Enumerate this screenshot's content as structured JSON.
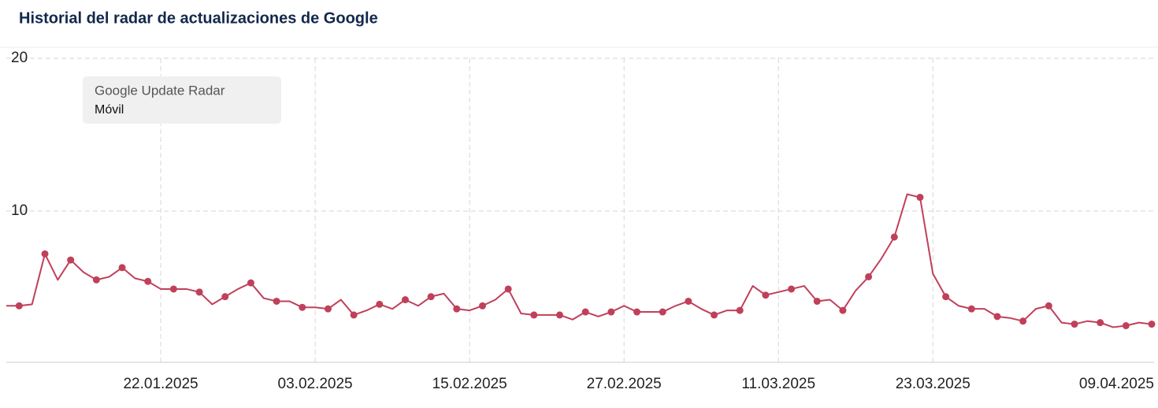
{
  "chart_data": {
    "type": "line",
    "title": "Historial del radar de actualizaciones de Google",
    "legend_title": "Google Update Radar",
    "x": [
      "10.01.2025",
      "11.01.2025",
      "12.01.2025",
      "13.01.2025",
      "14.01.2025",
      "15.01.2025",
      "16.01.2025",
      "17.01.2025",
      "18.01.2025",
      "19.01.2025",
      "20.01.2025",
      "21.01.2025",
      "22.01.2025",
      "23.01.2025",
      "24.01.2025",
      "25.01.2025",
      "26.01.2025",
      "27.01.2025",
      "28.01.2025",
      "29.01.2025",
      "30.01.2025",
      "31.01.2025",
      "01.02.2025",
      "02.02.2025",
      "03.02.2025",
      "04.02.2025",
      "05.02.2025",
      "06.02.2025",
      "07.02.2025",
      "08.02.2025",
      "09.02.2025",
      "10.02.2025",
      "11.02.2025",
      "12.02.2025",
      "13.02.2025",
      "14.02.2025",
      "15.02.2025",
      "16.02.2025",
      "17.02.2025",
      "18.02.2025",
      "19.02.2025",
      "20.02.2025",
      "21.02.2025",
      "22.02.2025",
      "23.02.2025",
      "24.02.2025",
      "25.02.2025",
      "26.02.2025",
      "27.02.2025",
      "28.02.2025",
      "01.03.2025",
      "02.03.2025",
      "03.03.2025",
      "04.03.2025",
      "05.03.2025",
      "06.03.2025",
      "07.03.2025",
      "08.03.2025",
      "09.03.2025",
      "10.03.2025",
      "11.03.2025",
      "12.03.2025",
      "13.03.2025",
      "14.03.2025",
      "15.03.2025",
      "16.03.2025",
      "17.03.2025",
      "18.03.2025",
      "19.03.2025",
      "20.03.2025",
      "21.03.2025",
      "22.03.2025",
      "23.03.2025",
      "24.03.2025",
      "25.03.2025",
      "26.03.2025",
      "27.03.2025",
      "28.03.2025",
      "29.03.2025",
      "30.03.2025",
      "31.03.2025",
      "01.04.2025",
      "02.04.2025",
      "03.04.2025",
      "04.04.2025",
      "05.04.2025",
      "06.04.2025",
      "07.04.2025",
      "08.04.2025",
      "09.04.2025"
    ],
    "series": [
      {
        "name": "Móvil",
        "color": "#c0405a",
        "values": [
          3.8,
          3.8,
          3.9,
          7.2,
          5.5,
          6.8,
          6.0,
          5.5,
          5.7,
          6.3,
          5.6,
          5.4,
          4.9,
          4.9,
          4.9,
          4.7,
          3.9,
          4.4,
          4.9,
          5.3,
          4.3,
          4.1,
          4.1,
          3.7,
          3.7,
          3.6,
          4.2,
          3.2,
          3.5,
          3.9,
          3.6,
          4.2,
          3.8,
          4.4,
          4.6,
          3.6,
          3.5,
          3.8,
          4.2,
          4.9,
          3.3,
          3.2,
          3.2,
          3.2,
          2.9,
          3.4,
          3.1,
          3.4,
          3.8,
          3.4,
          3.4,
          3.4,
          3.8,
          4.1,
          3.6,
          3.2,
          3.5,
          3.5,
          5.1,
          4.5,
          4.7,
          4.9,
          5.1,
          4.1,
          4.2,
          3.5,
          4.8,
          5.7,
          6.9,
          8.3,
          11.1,
          10.9,
          5.9,
          4.4,
          3.8,
          3.6,
          3.6,
          3.1,
          3.0,
          2.8,
          3.6,
          3.8,
          2.7,
          2.6,
          2.8,
          2.7,
          2.4,
          2.5,
          2.7,
          2.6
        ]
      }
    ],
    "xlim": [
      "10.01.2025",
      "09.04.2025"
    ],
    "xticks": [
      "22.01.2025",
      "03.02.2025",
      "15.02.2025",
      "27.02.2025",
      "11.03.2025",
      "23.03.2025",
      "09.04.2025"
    ],
    "ylim": [
      0,
      20
    ],
    "yticks": [
      10,
      20
    ],
    "grid": true
  }
}
